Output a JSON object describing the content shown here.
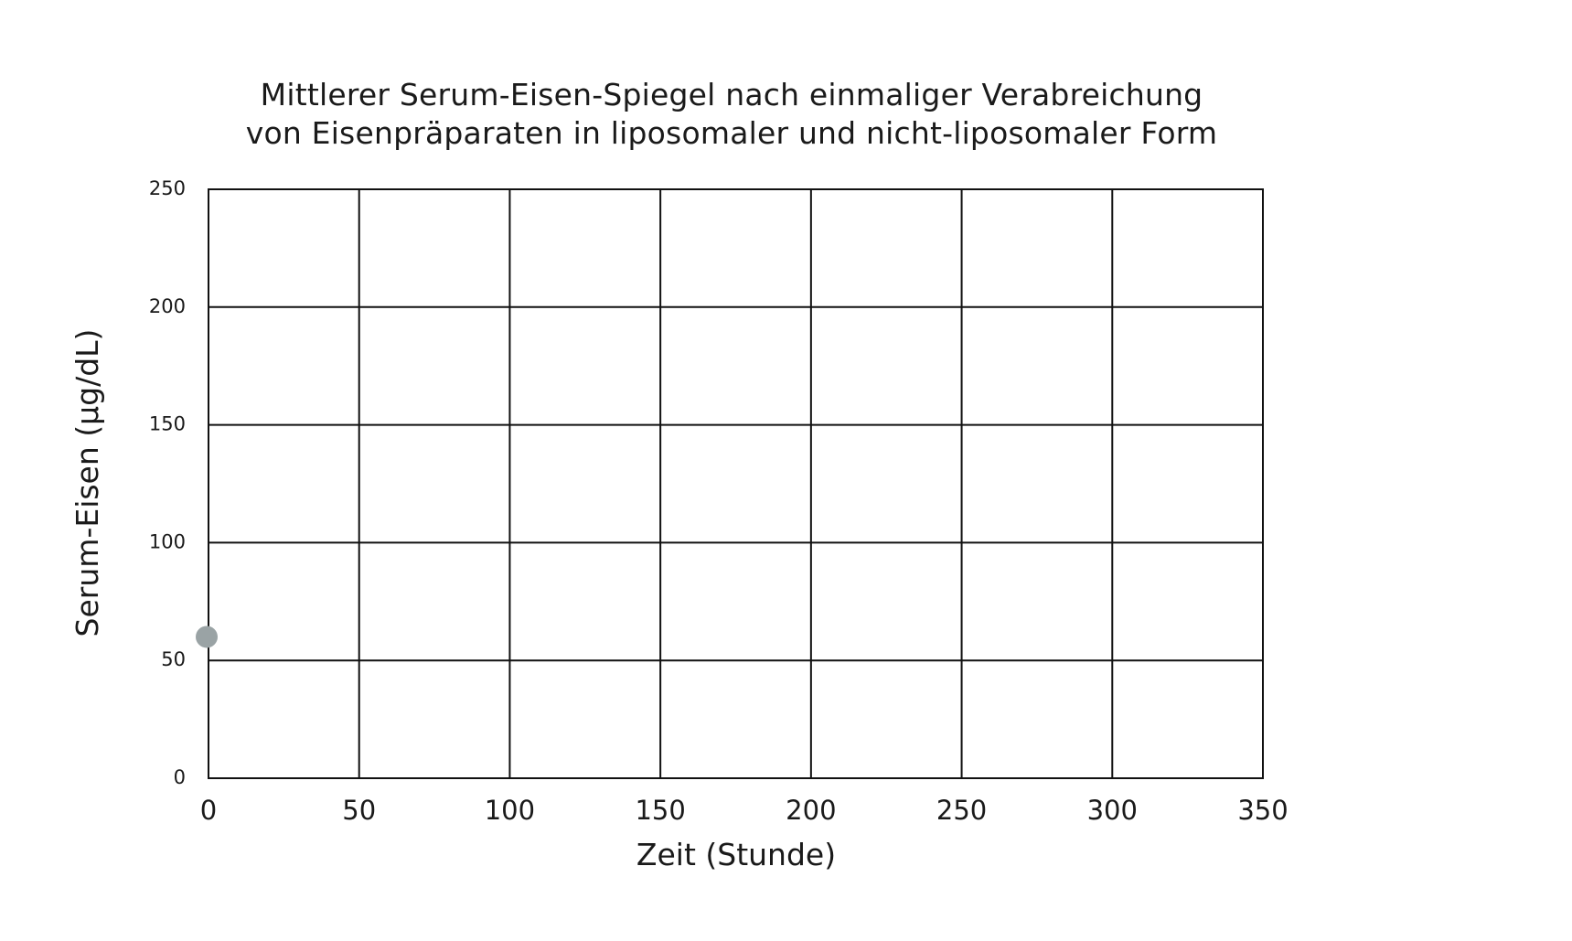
{
  "chart_data": {
    "type": "scatter",
    "title_line1": "Mittlerer Serum-Eisen-Spiegel nach einmaliger Verabreichung",
    "title_line2": "von Eisenpräparaten in liposomaler und nicht-liposomaler Form",
    "xlabel": "Zeit (Stunde)",
    "ylabel": "Serum-Eisen (µg/dL)",
    "xlim": [
      0,
      350
    ],
    "ylim": [
      0,
      250
    ],
    "x_ticks": [
      0,
      50,
      100,
      150,
      200,
      250,
      300,
      350
    ],
    "y_ticks": [
      0,
      50,
      100,
      150,
      200,
      250
    ],
    "grid": true,
    "legend": "none",
    "series": [
      {
        "color": "#9aa3a5",
        "points": [
          {
            "x": 0,
            "y": 60
          }
        ]
      }
    ],
    "colors": {
      "grid": "#111111",
      "text": "#1a1a1a",
      "point": "#9aa3a5"
    }
  }
}
